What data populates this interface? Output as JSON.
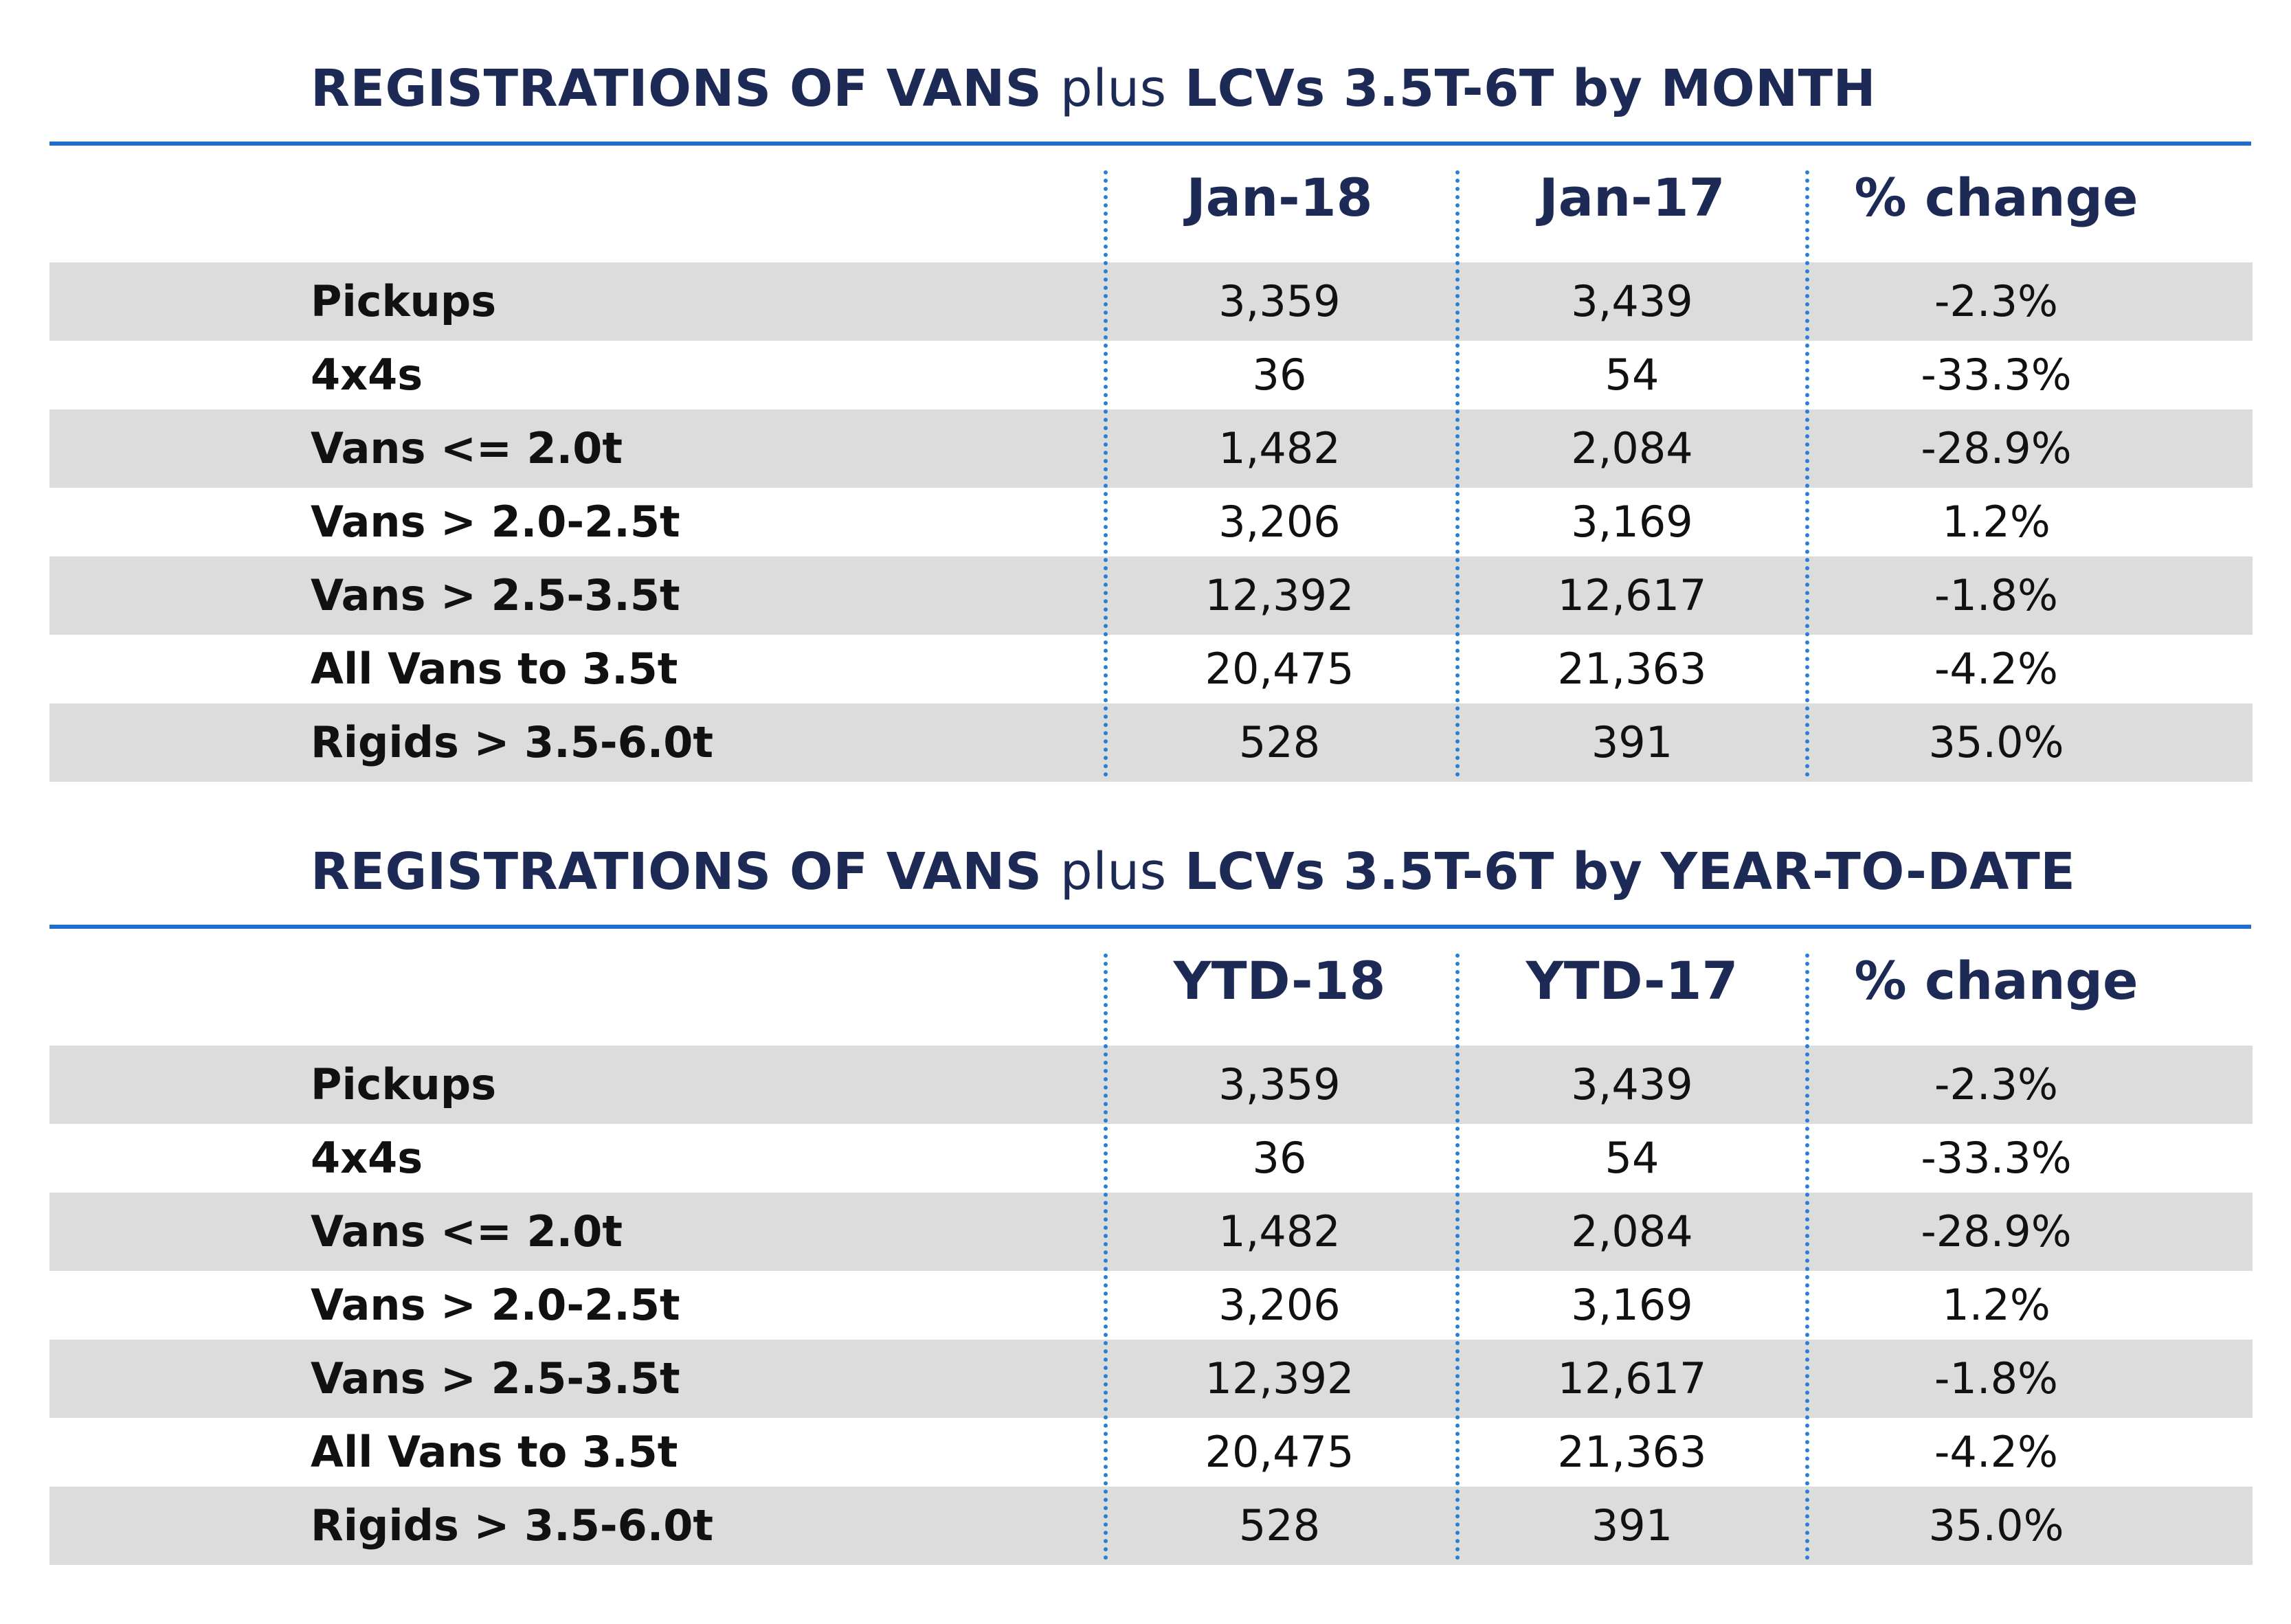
{
  "chart_data": [
    {
      "type": "table",
      "title_parts": [
        "REGISTRATIONS OF VANS",
        "plus",
        "LCVs 3.5T-6T by MONTH"
      ],
      "columns": [
        "Jan-18",
        "Jan-17",
        "% change"
      ],
      "rows": [
        {
          "label": "Pickups",
          "values": [
            "3,359",
            "3,439",
            "-2.3%"
          ]
        },
        {
          "label": "4x4s",
          "values": [
            "36",
            "54",
            "-33.3%"
          ]
        },
        {
          "label": "Vans <= 2.0t",
          "values": [
            "1,482",
            "2,084",
            "-28.9%"
          ]
        },
        {
          "label": "Vans > 2.0-2.5t",
          "values": [
            "3,206",
            "3,169",
            "1.2%"
          ]
        },
        {
          "label": "Vans > 2.5-3.5t",
          "values": [
            "12,392",
            "12,617",
            "-1.8%"
          ]
        },
        {
          "label": "All Vans to 3.5t",
          "values": [
            "20,475",
            "21,363",
            "-4.2%"
          ]
        },
        {
          "label": "Rigids > 3.5-6.0t",
          "values": [
            "528",
            "391",
            "35.0%"
          ]
        }
      ]
    },
    {
      "type": "table",
      "title_parts": [
        "REGISTRATIONS OF VANS",
        "plus",
        "LCVs 3.5T-6T by YEAR-TO-DATE"
      ],
      "columns": [
        "YTD-18",
        "YTD-17",
        "% change"
      ],
      "rows": [
        {
          "label": "Pickups",
          "values": [
            "3,359",
            "3,439",
            "-2.3%"
          ]
        },
        {
          "label": "4x4s",
          "values": [
            "36",
            "54",
            "-33.3%"
          ]
        },
        {
          "label": "Vans <= 2.0t",
          "values": [
            "1,482",
            "2,084",
            "-28.9%"
          ]
        },
        {
          "label": "Vans > 2.0-2.5t",
          "values": [
            "3,206",
            "3,169",
            "1.2%"
          ]
        },
        {
          "label": "Vans > 2.5-3.5t",
          "values": [
            "12,392",
            "12,617",
            "-1.8%"
          ]
        },
        {
          "label": "All Vans to 3.5t",
          "values": [
            "20,475",
            "21,363",
            "-4.2%"
          ]
        },
        {
          "label": "Rigids > 3.5-6.0t",
          "values": [
            "528",
            "391",
            "35.0%"
          ]
        }
      ]
    }
  ],
  "colors": {
    "title": "#1c2a55",
    "rule": "#1f6fc8",
    "divider": "#2a7fd4",
    "row_shade": "#dcdcdc"
  }
}
